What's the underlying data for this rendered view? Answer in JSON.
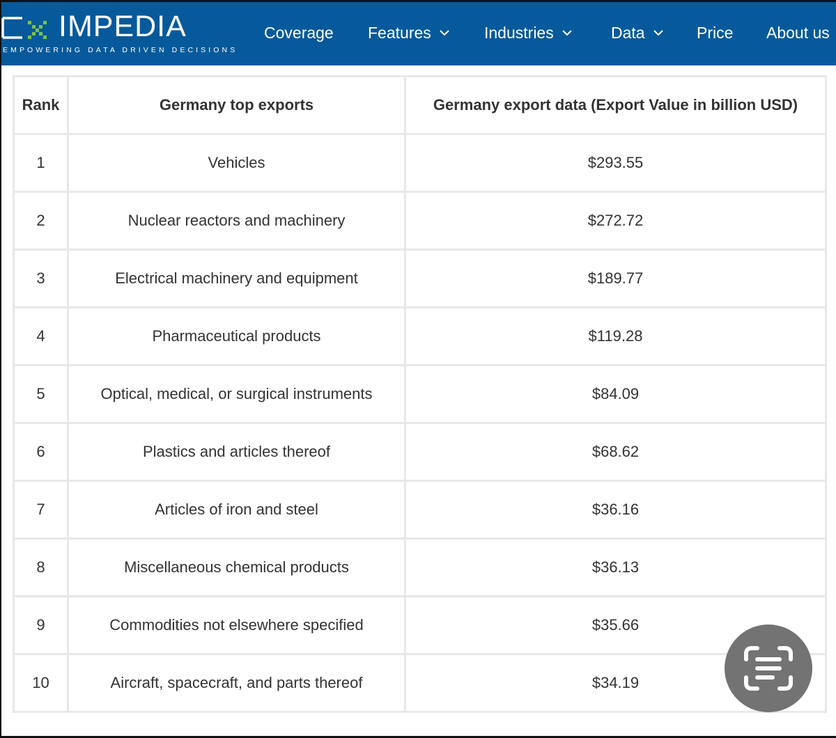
{
  "brand": {
    "logo_text": "EXIMPEDIA",
    "tagline": "EMPOWERING DATA DRIVEN DECISIONS",
    "header_color": "#065a9b"
  },
  "nav": [
    {
      "label": "Coverage",
      "dropdown": false
    },
    {
      "label": "Features",
      "dropdown": true
    },
    {
      "label": "Industries",
      "dropdown": true
    },
    {
      "label": "Data",
      "dropdown": true
    },
    {
      "label": "Price",
      "dropdown": false
    },
    {
      "label": "About us",
      "dropdown": false
    }
  ],
  "table": {
    "headers": [
      "Rank",
      "Germany top exports",
      "Germany export data (Export Value in billion USD)"
    ],
    "rows": [
      {
        "rank": "1",
        "product": "Vehicles",
        "value": "$293.55"
      },
      {
        "rank": "2",
        "product": "Nuclear reactors and machinery",
        "value": "$272.72"
      },
      {
        "rank": "3",
        "product": "Electrical machinery and equipment",
        "value": "$189.77"
      },
      {
        "rank": "4",
        "product": "Pharmaceutical products",
        "value": "$119.28"
      },
      {
        "rank": "5",
        "product": "Optical, medical, or surgical instruments",
        "value": "$84.09"
      },
      {
        "rank": "6",
        "product": "Plastics and articles thereof",
        "value": "$68.62"
      },
      {
        "rank": "7",
        "product": "Articles of iron and steel",
        "value": "$36.16"
      },
      {
        "rank": "8",
        "product": "Miscellaneous chemical products",
        "value": "$36.13"
      },
      {
        "rank": "9",
        "product": "Commodities not elsewhere specified",
        "value": "$35.66"
      },
      {
        "rank": "10",
        "product": "Aircraft, spacecraft, and parts thereof",
        "value": "$34.19"
      }
    ]
  },
  "overlay": {
    "scan_button_icon": "text-scan-icon",
    "scan_button_color": "#737373"
  }
}
